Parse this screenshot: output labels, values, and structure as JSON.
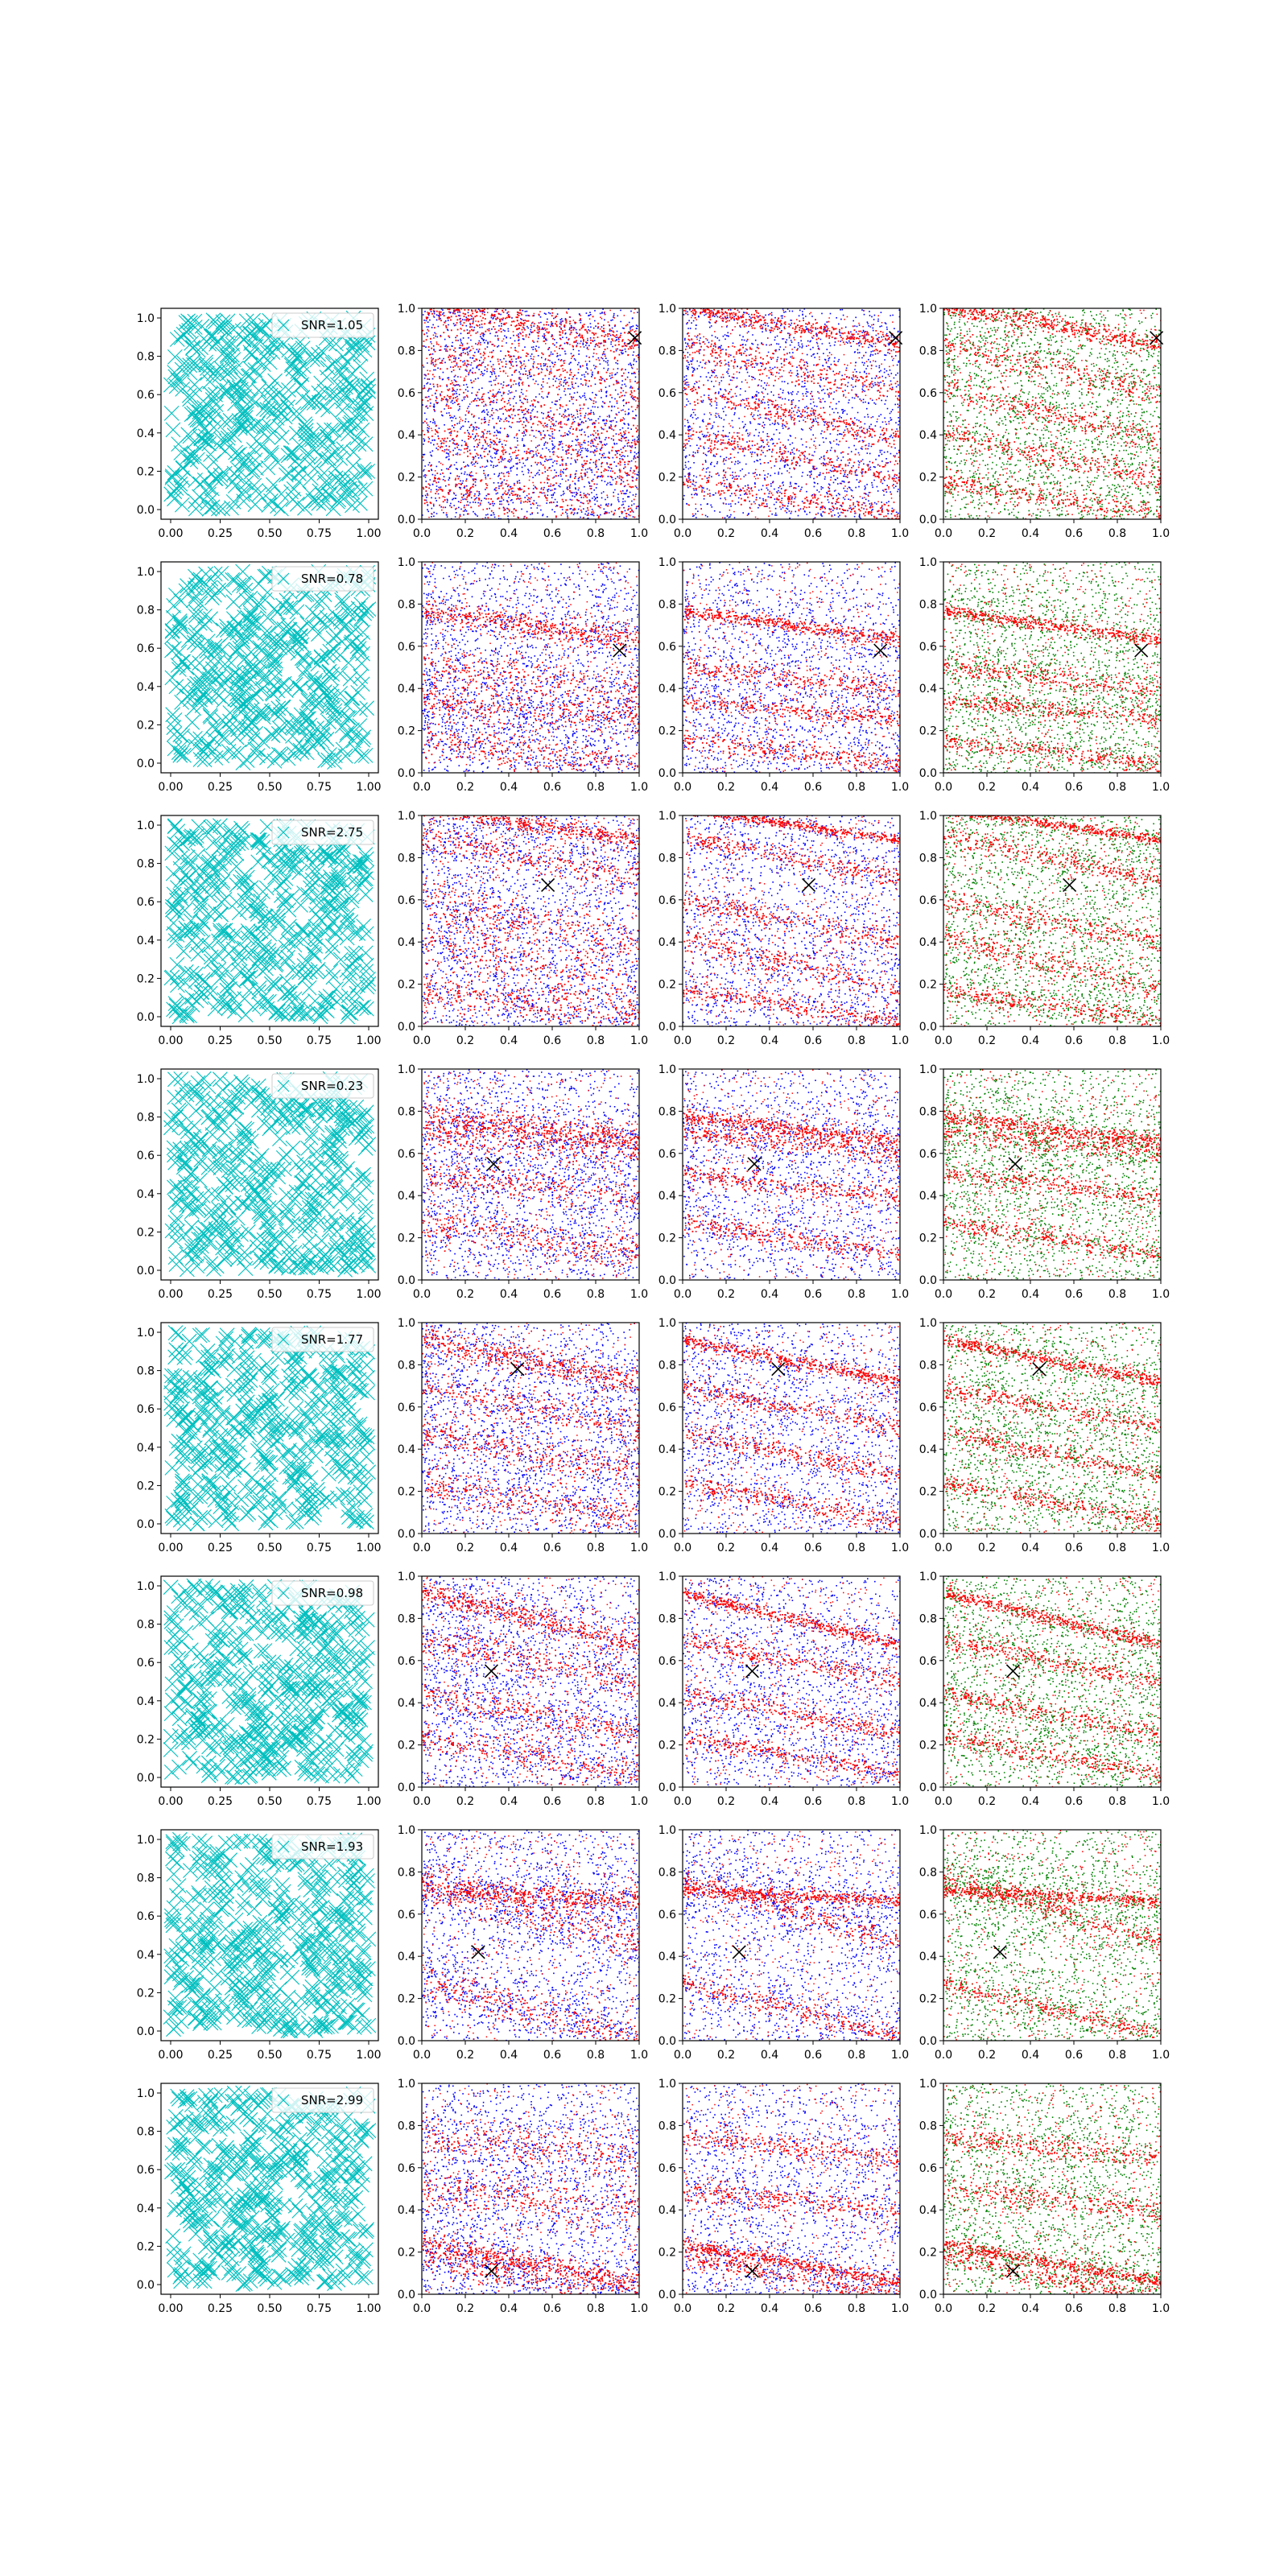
{
  "figure": {
    "rows": 8,
    "cols": 4
  },
  "colors": {
    "scatter_col1": "#00bfbf",
    "red": "#ff0000",
    "blue": "#0000ff",
    "green": "#008000",
    "marker": "#000000"
  },
  "chart_data": {
    "type": "scatter",
    "description_axes": {
      "xlim": [
        0,
        1
      ],
      "ylim": [
        0,
        1
      ],
      "col1_xticks": [
        "0.00",
        "0.25",
        "0.50",
        "0.75",
        "1.00"
      ],
      "col1_yticks": [
        "0.0",
        "0.2",
        "0.4",
        "0.6",
        "0.8",
        "1.0"
      ],
      "other_xticks": [
        "0.0",
        "0.2",
        "0.4",
        "0.6",
        "0.8",
        "1.0"
      ],
      "other_yticks": [
        "0.0",
        "0.2",
        "0.4",
        "0.6",
        "0.8",
        "1.0"
      ],
      "grid": false
    },
    "legend_placement": "top-right",
    "panel_columns": [
      {
        "col": 1,
        "series": "uniform points",
        "marker": "x",
        "color": "#00bfbf"
      },
      {
        "col": 2,
        "series": [
          "red",
          "blue"
        ],
        "marker": "dot"
      },
      {
        "col": 3,
        "series": [
          "red",
          "blue"
        ],
        "marker": "dot"
      },
      {
        "col": 4,
        "series": [
          "red",
          "green"
        ],
        "marker": "dot"
      }
    ],
    "rows": [
      {
        "snr": "SNR=1.05",
        "marker": [
          0.98,
          0.86
        ],
        "bands": [
          [
            0.92,
            0.18,
            0.055
          ],
          [
            0.72,
            0.22,
            0.06
          ],
          [
            0.5,
            0.25,
            0.05
          ],
          [
            0.3,
            0.2,
            0.05
          ],
          [
            0.1,
            0.15,
            0.05
          ]
        ]
      },
      {
        "snr": "SNR=0.78",
        "marker": [
          0.91,
          0.58
        ],
        "bands": [
          [
            0.7,
            0.14,
            0.04
          ],
          [
            0.45,
            0.12,
            0.05
          ],
          [
            0.3,
            0.08,
            0.04
          ],
          [
            0.1,
            0.12,
            0.04
          ]
        ]
      },
      {
        "snr": "SNR=2.75",
        "marker": [
          0.58,
          0.67
        ],
        "bands": [
          [
            0.96,
            0.15,
            0.03
          ],
          [
            0.8,
            0.2,
            0.04
          ],
          [
            0.5,
            0.2,
            0.05
          ],
          [
            0.3,
            0.25,
            0.06
          ],
          [
            0.1,
            0.15,
            0.04
          ]
        ]
      },
      {
        "snr": "SNR=0.23",
        "marker": [
          0.33,
          0.55
        ],
        "bands": [
          [
            0.72,
            0.12,
            0.05
          ],
          [
            0.65,
            0.1,
            0.04
          ],
          [
            0.45,
            0.12,
            0.04
          ],
          [
            0.2,
            0.15,
            0.04
          ]
        ]
      },
      {
        "snr": "SNR=1.77",
        "marker": [
          0.44,
          0.78
        ],
        "bands": [
          [
            0.82,
            0.2,
            0.04
          ],
          [
            0.6,
            0.18,
            0.04
          ],
          [
            0.38,
            0.2,
            0.04
          ],
          [
            0.15,
            0.18,
            0.04
          ]
        ]
      },
      {
        "snr": "SNR=0.98",
        "marker": [
          0.32,
          0.55
        ],
        "bands": [
          [
            0.8,
            0.25,
            0.04
          ],
          [
            0.6,
            0.2,
            0.04
          ],
          [
            0.35,
            0.2,
            0.04
          ],
          [
            0.15,
            0.18,
            0.04
          ]
        ]
      },
      {
        "snr": "SNR=1.93",
        "marker": [
          0.26,
          0.42
        ],
        "bands": [
          [
            0.69,
            0.05,
            0.04
          ],
          [
            0.62,
            0.3,
            0.05
          ],
          [
            0.15,
            0.25,
            0.04
          ]
        ]
      },
      {
        "snr": "SNR=2.99",
        "marker": [
          0.32,
          0.11
        ],
        "bands": [
          [
            0.15,
            0.18,
            0.04
          ],
          [
            0.08,
            0.2,
            0.04
          ],
          [
            0.45,
            0.1,
            0.05
          ],
          [
            0.7,
            0.1,
            0.05
          ]
        ]
      }
    ]
  }
}
